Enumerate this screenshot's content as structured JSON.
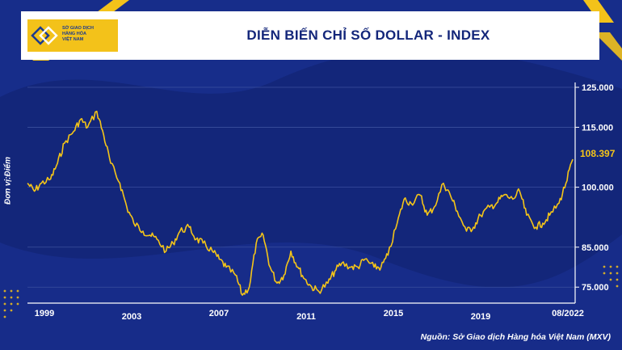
{
  "header": {
    "title": "DIỄN BIẾN CHỈ SỐ DOLLAR - INDEX",
    "logo_text_1": "SỞ GIAO DỊCH",
    "logo_text_2": "HÀNG HÓA",
    "logo_text_3": "VIỆT NAM"
  },
  "source": "Nguồn: Sở Giao dịch Hàng hóa Việt Nam (MXV)",
  "colors": {
    "background": "#13267a",
    "line": "#f5c518",
    "header_bg": "#ffffff",
    "logo": "#f3c21a"
  },
  "chart_data": {
    "type": "line",
    "ylabel": "Đơn vị:Điểm",
    "x_tick_labels": [
      "1999",
      "2003",
      "2007",
      "2011",
      "2015",
      "2019",
      "08/2022"
    ],
    "y_tick_labels": [
      "125.000",
      "115.000",
      "100.000",
      "85.000",
      "75.000"
    ],
    "y_tick_values": [
      125,
      115,
      100,
      85,
      75
    ],
    "last_value_label": "108.397",
    "last_value": 108.4,
    "ylim": [
      71,
      125
    ],
    "xlim": [
      1999.0,
      2022.7
    ],
    "grid": "horizontal",
    "series": [
      {
        "x": [
          1999.0,
          1999.3,
          1999.6,
          2000.0,
          2000.3,
          2000.6,
          2001.0,
          2001.3,
          2001.6,
          2002.0,
          2002.3,
          2002.6,
          2003.0,
          2003.3,
          2003.6,
          2004.0,
          2004.3,
          2004.6,
          2005.0,
          2005.3,
          2005.6,
          2006.0,
          2006.3,
          2006.6,
          2007.0,
          2007.3,
          2007.6,
          2008.0,
          2008.3,
          2008.6,
          2008.9,
          2009.2,
          2009.5,
          2009.8,
          2010.1,
          2010.4,
          2010.7,
          2011.0,
          2011.3,
          2011.6,
          2012.0,
          2012.3,
          2012.6,
          2013.0,
          2013.3,
          2013.6,
          2014.0,
          2014.3,
          2014.6,
          2015.0,
          2015.3,
          2015.6,
          2016.0,
          2016.3,
          2016.6,
          2017.0,
          2017.3,
          2017.6,
          2018.0,
          2018.3,
          2018.6,
          2019.0,
          2019.3,
          2019.6,
          2020.0,
          2020.3,
          2020.6,
          2021.0,
          2021.3,
          2021.6,
          2022.0,
          2022.3,
          2022.6
        ],
        "values": [
          101,
          99,
          101,
          102,
          106,
          111,
          114,
          117,
          115,
          119,
          113,
          106,
          101,
          95,
          91,
          89,
          88,
          87,
          84,
          86,
          89,
          90,
          87,
          86,
          84,
          82,
          80,
          78,
          73,
          75,
          86,
          88,
          80,
          76,
          78,
          84,
          80,
          77,
          75,
          74,
          76,
          79,
          81,
          80,
          80,
          82,
          80,
          80,
          83,
          91,
          97,
          96,
          98,
          93,
          95,
          101,
          98,
          94,
          89,
          90,
          93,
          95,
          96,
          98,
          97,
          99,
          93,
          90,
          91,
          93,
          96,
          101,
          107
        ]
      }
    ]
  }
}
